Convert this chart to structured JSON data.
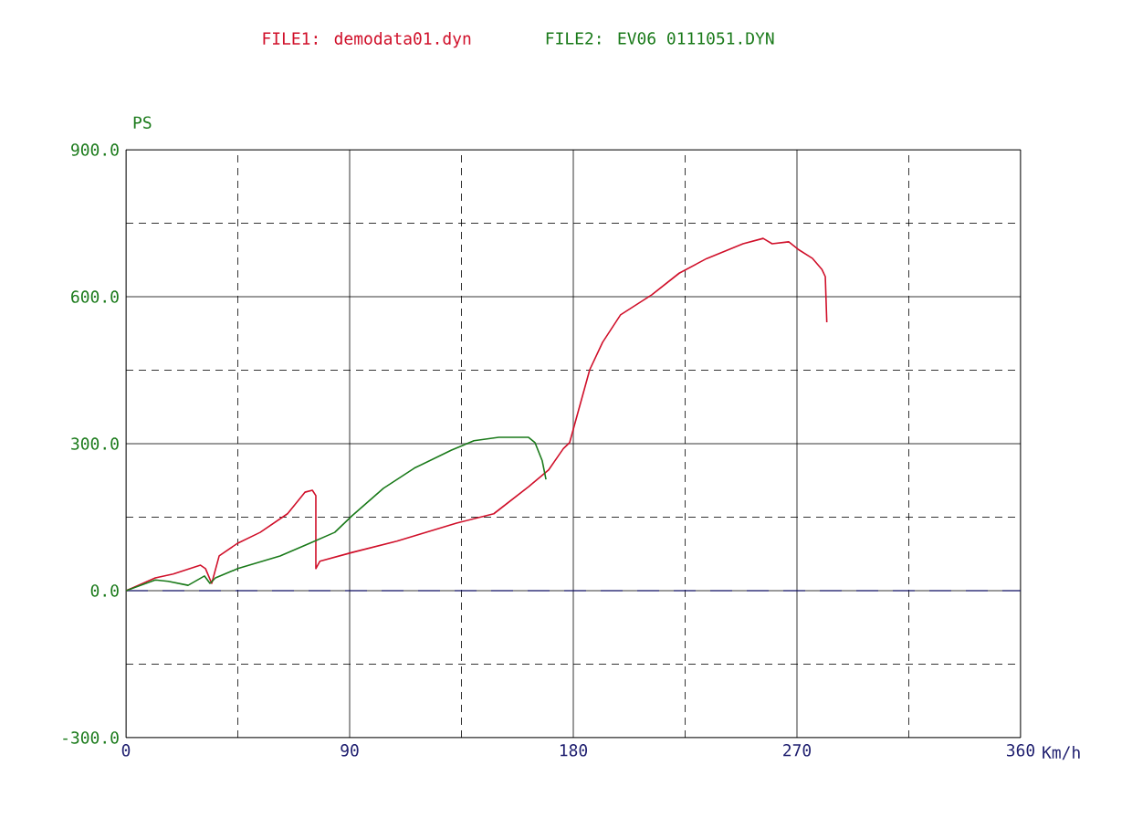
{
  "chart_data": {
    "type": "line",
    "xlabel": "Km/h",
    "ylabel": "PS",
    "xlim": [
      0,
      360
    ],
    "ylim": [
      -300,
      900
    ],
    "xticks": [
      0,
      {
        "value": 45,
        "label": null
      },
      90,
      {
        "value": 135,
        "label": null
      },
      180,
      {
        "value": 225,
        "label": null
      },
      270,
      {
        "value": 315,
        "label": null
      },
      360
    ],
    "yticks": [
      {
        "value": -300,
        "label": "-300.0"
      },
      {
        "value": -150,
        "label": null
      },
      {
        "value": 0,
        "label": "0.0"
      },
      {
        "value": 150,
        "label": null
      },
      {
        "value": 300,
        "label": "300.0"
      },
      {
        "value": 450,
        "label": null
      },
      {
        "value": 600,
        "label": "600.0"
      },
      {
        "value": 750,
        "label": null
      },
      {
        "value": 900,
        "label": "900.0"
      }
    ],
    "grid": true,
    "legend": "top",
    "marker": "none",
    "line_style": "solid",
    "ref_lines": [
      {
        "axis": "y",
        "value": 0,
        "color": "#1a1aa0",
        "line_style": "dashed"
      }
    ],
    "series": [
      {
        "name": "FILE1: demodata01.dyn",
        "color": "#d0102a",
        "x": [
          0,
          11.8,
          19,
          30,
          32,
          34.5,
          37.5,
          45,
          54,
          65,
          72,
          75,
          76.4,
          76.4,
          78,
          91,
          109,
          133,
          148,
          162,
          170,
          176,
          178.5,
          186.6,
          191.8,
          199,
          211.6,
          222.6,
          233.7,
          248.3,
          256.4,
          260,
          266.7,
          270.4,
          276.3,
          280,
          281.4,
          282
        ],
        "values": [
          0,
          26,
          34,
          52,
          45,
          15,
          71,
          97,
          119,
          157,
          201,
          205,
          194,
          45,
          60,
          78,
          101,
          138,
          157,
          212,
          246,
          290,
          302,
          451,
          507,
          563,
          604,
          648,
          678,
          708,
          719,
          708,
          712,
          697,
          678,
          656,
          641,
          548
        ]
      },
      {
        "name": "FILE2: EV06  0111051.DYN",
        "color": "#1a7a1a",
        "x": [
          0,
          11.8,
          17,
          25,
          31.6,
          33.8,
          36,
          45,
          62,
          74,
          84,
          91,
          103.6,
          116,
          131,
          140,
          150,
          162,
          164.6,
          167.5,
          169
        ],
        "values": [
          0,
          22,
          19,
          11,
          30,
          15,
          26,
          45,
          71,
          97,
          119,
          153,
          209,
          250,
          287,
          306,
          313,
          313,
          302,
          265,
          227
        ]
      }
    ]
  }
}
